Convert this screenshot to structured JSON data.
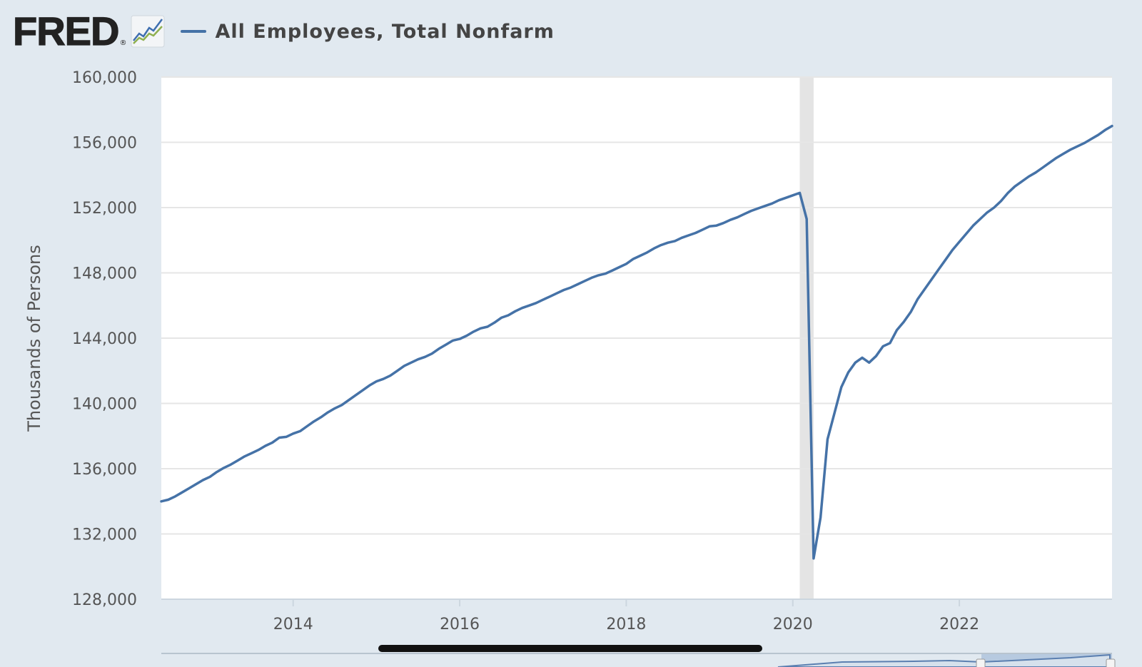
{
  "header": {
    "logo": "FRED",
    "logo_mark": "®",
    "logo_icon": "line-chart-icon",
    "series_label": "All Employees, Total Nonfarm"
  },
  "colors": {
    "background": "#e1e9f0",
    "plot": "#ffffff",
    "line": "#4572a7",
    "recession": "#e4e4e4",
    "grid": "#e6e6e6"
  },
  "chart_data": {
    "type": "line",
    "title": "",
    "xlabel": "",
    "ylabel": "Thousands of Persons",
    "ylim": [
      128000,
      160000
    ],
    "yticks": [
      128000,
      132000,
      136000,
      140000,
      144000,
      148000,
      152000,
      156000,
      160000
    ],
    "ytick_labels": [
      "128,000",
      "132,000",
      "136,000",
      "140,000",
      "144,000",
      "148,000",
      "152,000",
      "156,000",
      "160,000"
    ],
    "xlim": [
      "2012-06",
      "2023-11"
    ],
    "xticks": [
      "2014",
      "2016",
      "2018",
      "2020",
      "2022"
    ],
    "grid": true,
    "legend": "top-left",
    "recession": {
      "start": "2020-02",
      "end": "2020-04"
    },
    "series": [
      {
        "name": "All Employees, Total Nonfarm",
        "x": [
          "2012-06",
          "2012-07",
          "2012-08",
          "2012-09",
          "2012-10",
          "2012-11",
          "2012-12",
          "2013-01",
          "2013-02",
          "2013-03",
          "2013-04",
          "2013-05",
          "2013-06",
          "2013-07",
          "2013-08",
          "2013-09",
          "2013-10",
          "2013-11",
          "2013-12",
          "2014-01",
          "2014-02",
          "2014-03",
          "2014-04",
          "2014-05",
          "2014-06",
          "2014-07",
          "2014-08",
          "2014-09",
          "2014-10",
          "2014-11",
          "2014-12",
          "2015-01",
          "2015-02",
          "2015-03",
          "2015-04",
          "2015-05",
          "2015-06",
          "2015-07",
          "2015-08",
          "2015-09",
          "2015-10",
          "2015-11",
          "2015-12",
          "2016-01",
          "2016-02",
          "2016-03",
          "2016-04",
          "2016-05",
          "2016-06",
          "2016-07",
          "2016-08",
          "2016-09",
          "2016-10",
          "2016-11",
          "2016-12",
          "2017-01",
          "2017-02",
          "2017-03",
          "2017-04",
          "2017-05",
          "2017-06",
          "2017-07",
          "2017-08",
          "2017-09",
          "2017-10",
          "2017-11",
          "2017-12",
          "2018-01",
          "2018-02",
          "2018-03",
          "2018-04",
          "2018-05",
          "2018-06",
          "2018-07",
          "2018-08",
          "2018-09",
          "2018-10",
          "2018-11",
          "2018-12",
          "2019-01",
          "2019-02",
          "2019-03",
          "2019-04",
          "2019-05",
          "2019-06",
          "2019-07",
          "2019-08",
          "2019-09",
          "2019-10",
          "2019-11",
          "2019-12",
          "2020-01",
          "2020-02",
          "2020-03",
          "2020-04",
          "2020-05",
          "2020-06",
          "2020-07",
          "2020-08",
          "2020-09",
          "2020-10",
          "2020-11",
          "2020-12",
          "2021-01",
          "2021-02",
          "2021-03",
          "2021-04",
          "2021-05",
          "2021-06",
          "2021-07",
          "2021-08",
          "2021-09",
          "2021-10",
          "2021-11",
          "2021-12",
          "2022-01",
          "2022-02",
          "2022-03",
          "2022-04",
          "2022-05",
          "2022-06",
          "2022-07",
          "2022-08",
          "2022-09",
          "2022-10",
          "2022-11",
          "2022-12",
          "2023-01",
          "2023-02",
          "2023-03",
          "2023-04",
          "2023-05",
          "2023-06",
          "2023-07",
          "2023-08",
          "2023-09",
          "2023-10",
          "2023-11"
        ],
        "values": [
          134000,
          134100,
          134300,
          134550,
          134800,
          135050,
          135300,
          135500,
          135800,
          136050,
          136250,
          136500,
          136750,
          136950,
          137150,
          137400,
          137600,
          137900,
          137950,
          138150,
          138300,
          138600,
          138900,
          139150,
          139450,
          139700,
          139900,
          140200,
          140500,
          140800,
          141100,
          141350,
          141500,
          141700,
          142000,
          142300,
          142500,
          142700,
          142850,
          143050,
          143350,
          143600,
          143850,
          143950,
          144150,
          144400,
          144600,
          144700,
          144950,
          145250,
          145400,
          145650,
          145850,
          146000,
          146150,
          146350,
          146550,
          146750,
          146950,
          147100,
          147300,
          147500,
          147700,
          147850,
          147950,
          148150,
          148350,
          148550,
          148850,
          149050,
          149250,
          149500,
          149700,
          149850,
          149950,
          150150,
          150300,
          150450,
          150650,
          150850,
          150900,
          151050,
          151250,
          151400,
          151600,
          151800,
          151950,
          152100,
          152250,
          152450,
          152600,
          152750,
          152900,
          151300,
          130500,
          133000,
          137800,
          139400,
          141000,
          141900,
          142500,
          142800,
          142500,
          142900,
          143500,
          143700,
          144500,
          145000,
          145600,
          146400,
          147000,
          147600,
          148200,
          148800,
          149400,
          149900,
          150400,
          150900,
          151300,
          151700,
          152000,
          152400,
          152900,
          153300,
          153600,
          153900,
          154150,
          154450,
          154750,
          155050,
          155300,
          155550,
          155750,
          155950,
          156200,
          156450,
          156750,
          157000
        ]
      }
    ]
  }
}
